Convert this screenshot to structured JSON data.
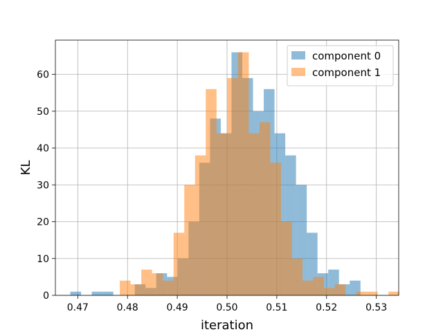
{
  "chart_data": {
    "type": "bar",
    "subtype": "overlapping-histogram",
    "title": "",
    "xlabel": "iteration",
    "ylabel": "KL",
    "xlim": [
      0.4655,
      0.5345
    ],
    "ylim": [
      0,
      69.3
    ],
    "xticks": [
      0.47,
      0.48,
      0.49,
      0.5,
      0.51,
      0.52,
      0.53
    ],
    "xtick_labels": [
      "0.47",
      "0.48",
      "0.49",
      "0.50",
      "0.51",
      "0.52",
      "0.53"
    ],
    "yticks": [
      0,
      10,
      20,
      30,
      40,
      50,
      60
    ],
    "ytick_labels": [
      "0",
      "10",
      "20",
      "30",
      "40",
      "50",
      "60"
    ],
    "grid": true,
    "legend_position": "top-right",
    "series": [
      {
        "name": "component 0",
        "color": "#1f77b4",
        "alpha": 0.5,
        "bin_start": 0.4685,
        "bin_width": 0.00216,
        "counts": [
          1,
          0,
          1,
          1,
          0,
          0,
          3,
          2,
          6,
          5,
          10,
          20,
          36,
          48,
          44,
          66,
          59,
          50,
          56,
          44,
          38,
          30,
          17,
          6,
          7,
          3,
          4
        ]
      },
      {
        "name": "component 1",
        "color": "#ff7f0e",
        "alpha": 0.5,
        "bin_start": 0.47845,
        "bin_width": 0.00216,
        "counts": [
          4,
          3,
          7,
          6,
          4,
          17,
          30,
          38,
          56,
          44,
          59,
          66,
          44,
          47,
          36,
          20,
          10,
          4,
          5,
          2,
          3,
          0,
          1,
          1,
          0,
          1
        ]
      }
    ]
  }
}
